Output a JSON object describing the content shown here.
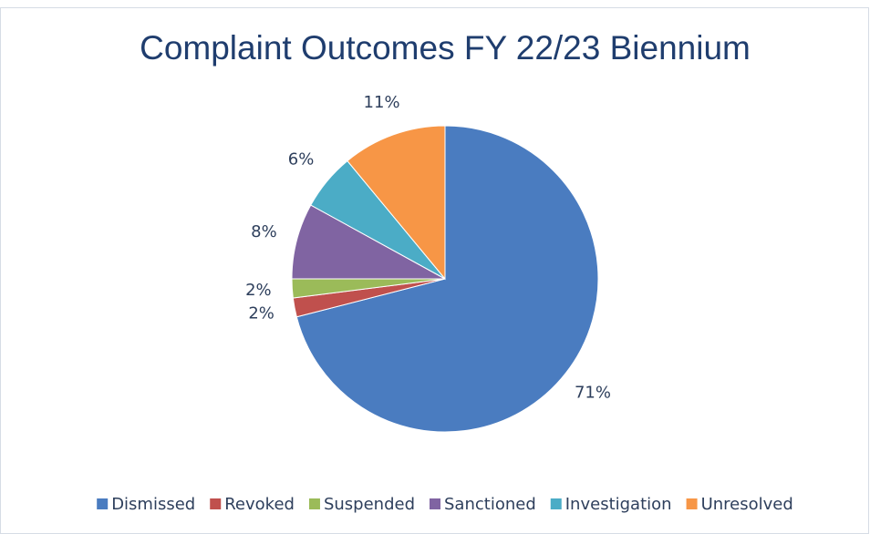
{
  "chart_data": {
    "type": "pie",
    "title": "Complaint Outcomes FY 22/23 Biennium",
    "categories": [
      "Dismissed",
      "Revoked",
      "Suspended",
      "Sanctioned",
      "Investigation",
      "Unresolved"
    ],
    "values": [
      71,
      2,
      2,
      8,
      6,
      11
    ],
    "value_labels": [
      "71%",
      "2%",
      "2%",
      "8%",
      "6%",
      "11%"
    ],
    "colors": [
      "#4a7cc0",
      "#c0504d",
      "#9bbb59",
      "#8064a2",
      "#4bacc6",
      "#f79646"
    ],
    "legend": "bottom"
  }
}
